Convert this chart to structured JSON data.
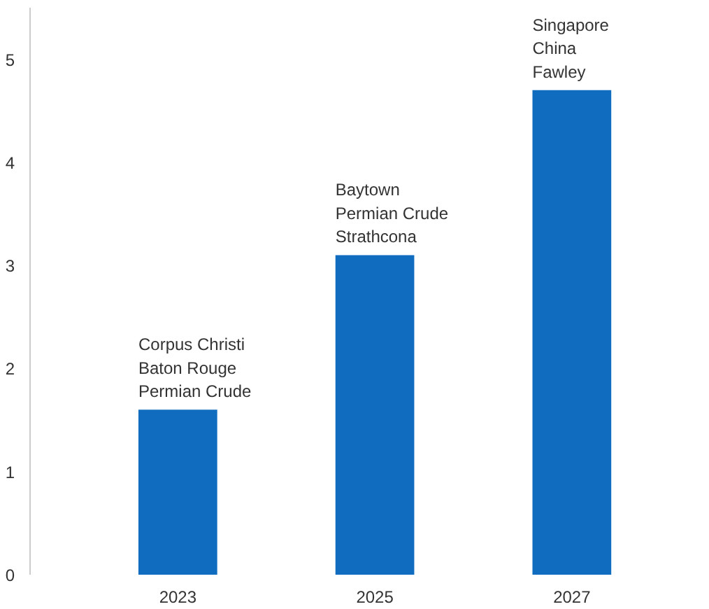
{
  "chart_data": {
    "type": "bar",
    "categories": [
      "2023",
      "2025",
      "2027"
    ],
    "values": [
      1.6,
      3.1,
      4.7
    ],
    "color": "#0f6cbf",
    "ylim": [
      0,
      5.5
    ],
    "yticks": [
      0,
      1,
      2,
      3,
      4,
      5
    ],
    "grid": false,
    "annotations": [
      {
        "text": "Corpus Christi\nBaton Rouge\nPermian Crude",
        "x": "2023",
        "y": 1.6
      },
      {
        "text": "Baytown\nPermian Crude\nStrathcona",
        "x": "2025",
        "y": 3.1
      },
      {
        "text": "Singapore\nChina\nFawley",
        "x": "2027",
        "y": 4.7
      }
    ]
  }
}
